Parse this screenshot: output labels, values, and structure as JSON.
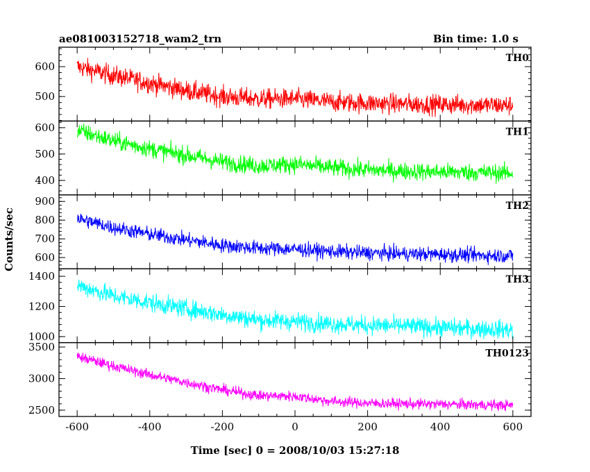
{
  "chart_data": {
    "type": "line",
    "title": "ae081003152718_wam2_trn",
    "bin_time_label": "Bin time: 1.0 s",
    "xlabel": "Time [sec] 0 = 2008/10/03 15:27:18",
    "ylabel": "Counts/sec",
    "xlim": [
      -650,
      650
    ],
    "x_data_range": [
      -600,
      600
    ],
    "x_ticks": [
      -600,
      -400,
      -200,
      0,
      200,
      400,
      600
    ],
    "grid": false,
    "panels": [
      {
        "label": "TH0",
        "color": "#ff0000",
        "ylim": [
          418,
          665
        ],
        "y_ticks": [
          500,
          600
        ],
        "trend": {
          "x": [
            -600,
            -500,
            -400,
            -300,
            -200,
            -100,
            0,
            100,
            200,
            300,
            400,
            500,
            600
          ],
          "y": [
            600,
            570,
            545,
            520,
            500,
            492,
            492,
            482,
            478,
            475,
            473,
            472,
            470
          ]
        },
        "noise_amplitude": 30
      },
      {
        "label": "TH1",
        "color": "#00ff00",
        "ylim": [
          345,
          625
        ],
        "y_ticks": [
          400,
          500,
          600
        ],
        "trend": {
          "x": [
            -600,
            -500,
            -400,
            -300,
            -200,
            -100,
            0,
            100,
            200,
            300,
            400,
            500,
            600
          ],
          "y": [
            590,
            550,
            520,
            495,
            470,
            455,
            462,
            448,
            440,
            435,
            432,
            430,
            428
          ]
        },
        "noise_amplitude": 30
      },
      {
        "label": "TH2",
        "color": "#0000ff",
        "ylim": [
          540,
          935
        ],
        "y_ticks": [
          600,
          700,
          800,
          900
        ],
        "trend": {
          "x": [
            -600,
            -500,
            -400,
            -300,
            -200,
            -100,
            0,
            100,
            200,
            300,
            400,
            500,
            600
          ],
          "y": [
            810,
            760,
            725,
            695,
            665,
            650,
            645,
            632,
            625,
            620,
            617,
            612,
            610
          ]
        },
        "noise_amplitude": 35
      },
      {
        "label": "TH3",
        "color": "#00ffff",
        "ylim": [
          960,
          1450
        ],
        "y_ticks": [
          1000,
          1200,
          1400
        ],
        "trend": {
          "x": [
            -600,
            -500,
            -400,
            -300,
            -200,
            -100,
            0,
            100,
            200,
            300,
            400,
            500,
            600
          ],
          "y": [
            1340,
            1270,
            1225,
            1185,
            1145,
            1110,
            1100,
            1085,
            1075,
            1070,
            1060,
            1052,
            1045
          ]
        },
        "noise_amplitude": 55
      },
      {
        "label": "TH0123",
        "color": "#ff00ff",
        "ylim": [
          2400,
          3570
        ],
        "y_ticks": [
          2500,
          3000,
          3500
        ],
        "trend": {
          "x": [
            -600,
            -500,
            -400,
            -300,
            -200,
            -100,
            0,
            100,
            200,
            300,
            400,
            500,
            600
          ],
          "y": [
            3350,
            3200,
            3060,
            2940,
            2820,
            2730,
            2720,
            2640,
            2610,
            2600,
            2595,
            2585,
            2575
          ]
        },
        "noise_amplitude": 75
      }
    ]
  }
}
